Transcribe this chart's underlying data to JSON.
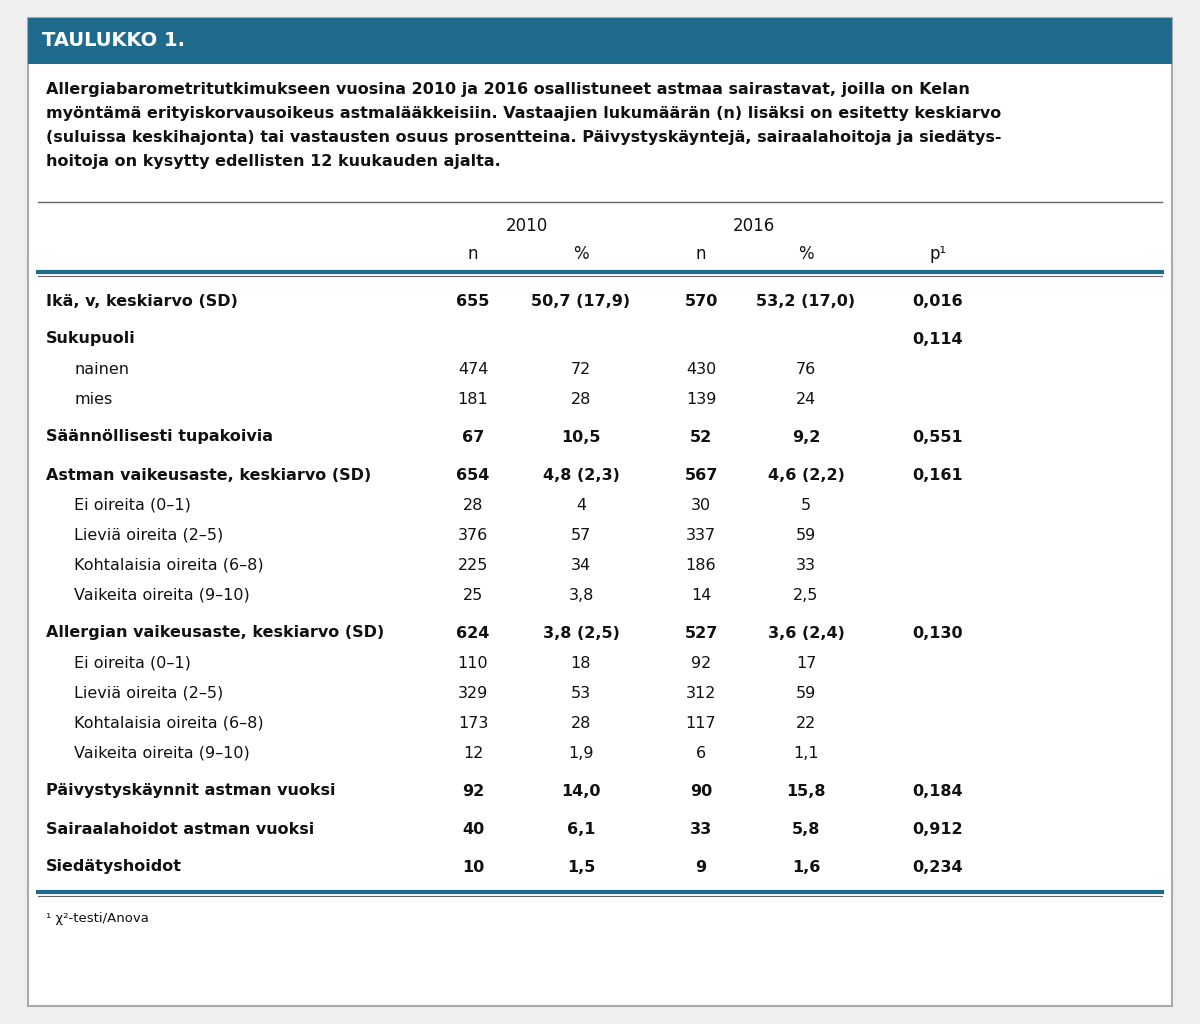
{
  "title": "TAULUKKO 1.",
  "header_bg": "#1f6b8e",
  "header_text_color": "#ffffff",
  "description_lines": [
    "Allergiabarometritutkimukseen vuosina 2010 ja 2016 osallistuneet astmaa sairastavat, joilla on Kelan",
    "myöntämä erityiskorvausoikeus astmalääkkeisiin. Vastaajien lukumäärän (n) lisäksi on esitetty keskiarvo",
    "(suluissa keskihajonta) tai vastausten osuus prosentteina. Päivystyskäyntejä, sairaalahoitoja ja siedätys-",
    "hoitoja on kysytty edellisten 12 kuukauden ajalta."
  ],
  "footnote": "¹ χ²-testi/Anova",
  "rows": [
    {
      "label": "Ikä, v, keskiarvo (SD)",
      "indent": 0,
      "bold": true,
      "n2010": "655",
      "pct2010": "50,7 (17,9)",
      "n2016": "570",
      "pct2016": "53,2 (17,0)",
      "p": "0,016"
    },
    {
      "label": "Sukupuoli",
      "indent": 0,
      "bold": true,
      "n2010": "",
      "pct2010": "",
      "n2016": "",
      "pct2016": "",
      "p": "0,114"
    },
    {
      "label": "nainen",
      "indent": 1,
      "bold": false,
      "n2010": "474",
      "pct2010": "72",
      "n2016": "430",
      "pct2016": "76",
      "p": ""
    },
    {
      "label": "mies",
      "indent": 1,
      "bold": false,
      "n2010": "181",
      "pct2010": "28",
      "n2016": "139",
      "pct2016": "24",
      "p": ""
    },
    {
      "label": "Säännöllisesti tupakoivia",
      "indent": 0,
      "bold": true,
      "n2010": "67",
      "pct2010": "10,5",
      "n2016": "52",
      "pct2016": "9,2",
      "p": "0,551"
    },
    {
      "label": "Astman vaikeusaste, keskiarvo (SD)",
      "indent": 0,
      "bold": true,
      "n2010": "654",
      "pct2010": "4,8 (2,3)",
      "n2016": "567",
      "pct2016": "4,6 (2,2)",
      "p": "0,161"
    },
    {
      "label": "Ei oireita (0–1)",
      "indent": 1,
      "bold": false,
      "n2010": "28",
      "pct2010": "4",
      "n2016": "30",
      "pct2016": "5",
      "p": ""
    },
    {
      "label": "Lieviä oireita (2–5)",
      "indent": 1,
      "bold": false,
      "n2010": "376",
      "pct2010": "57",
      "n2016": "337",
      "pct2016": "59",
      "p": ""
    },
    {
      "label": "Kohtalaisia oireita (6–8)",
      "indent": 1,
      "bold": false,
      "n2010": "225",
      "pct2010": "34",
      "n2016": "186",
      "pct2016": "33",
      "p": ""
    },
    {
      "label": "Vaikeita oireita (9–10)",
      "indent": 1,
      "bold": false,
      "n2010": "25",
      "pct2010": "3,8",
      "n2016": "14",
      "pct2016": "2,5",
      "p": ""
    },
    {
      "label": "Allergian vaikeusaste, keskiarvo (SD)",
      "indent": 0,
      "bold": true,
      "n2010": "624",
      "pct2010": "3,8 (2,5)",
      "n2016": "527",
      "pct2016": "3,6 (2,4)",
      "p": "0,130"
    },
    {
      "label": "Ei oireita (0–1)",
      "indent": 1,
      "bold": false,
      "n2010": "110",
      "pct2010": "18",
      "n2016": "92",
      "pct2016": "17",
      "p": ""
    },
    {
      "label": "Lieviä oireita (2–5)",
      "indent": 1,
      "bold": false,
      "n2010": "329",
      "pct2010": "53",
      "n2016": "312",
      "pct2016": "59",
      "p": ""
    },
    {
      "label": "Kohtalaisia oireita (6–8)",
      "indent": 1,
      "bold": false,
      "n2010": "173",
      "pct2010": "28",
      "n2016": "117",
      "pct2016": "22",
      "p": ""
    },
    {
      "label": "Vaikeita oireita (9–10)",
      "indent": 1,
      "bold": false,
      "n2010": "12",
      "pct2010": "1,9",
      "n2016": "6",
      "pct2016": "1,1",
      "p": ""
    },
    {
      "label": "Päivystyskäynnit astman vuoksi",
      "indent": 0,
      "bold": true,
      "n2010": "92",
      "pct2010": "14,0",
      "n2016": "90",
      "pct2016": "15,8",
      "p": "0,184"
    },
    {
      "label": "Sairaalahoidot astman vuoksi",
      "indent": 0,
      "bold": true,
      "n2010": "40",
      "pct2010": "6,1",
      "n2016": "33",
      "pct2016": "5,8",
      "p": "0,912"
    },
    {
      "label": "Siedätyshoidot",
      "indent": 0,
      "bold": true,
      "n2010": "10",
      "pct2010": "1,5",
      "n2016": "9",
      "pct2016": "1,6",
      "p": "0,234"
    }
  ],
  "bg_color": "#efefef",
  "table_bg": "#ffffff",
  "border_color": "#1f6b8e",
  "thin_line_color": "#666666"
}
